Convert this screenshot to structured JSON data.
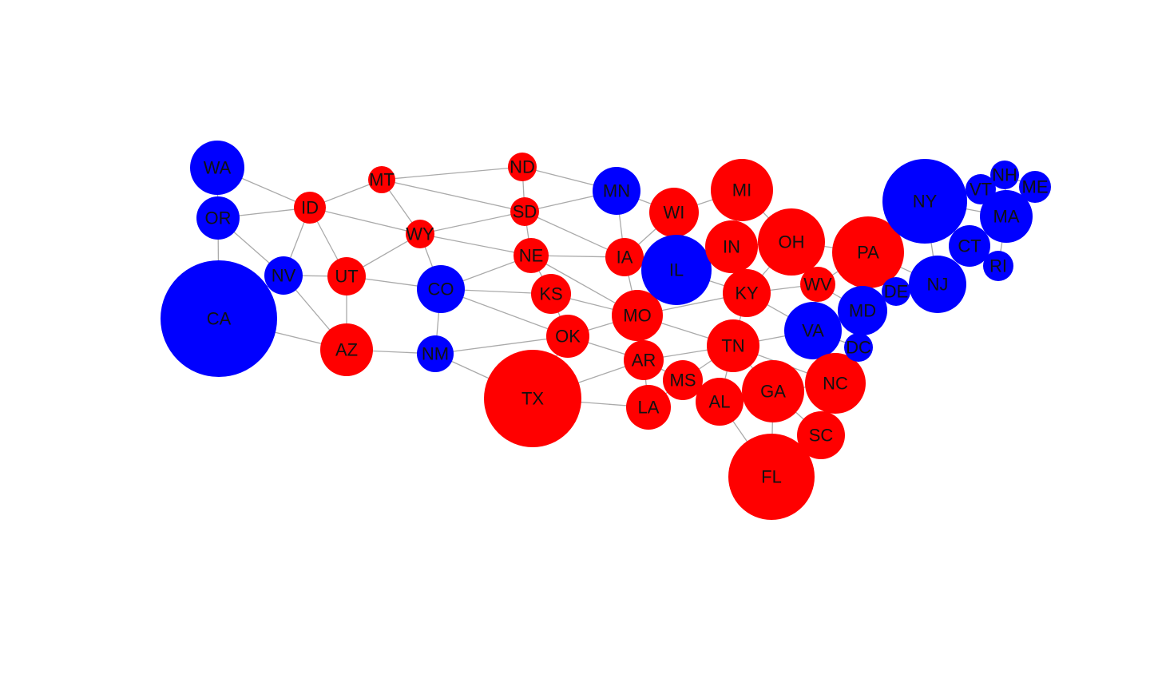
{
  "diagram": {
    "type": "network-graph",
    "party_colors": {
      "red": "#ff0000",
      "blue": "#0000ff"
    },
    "edge_color": "#aaaaaa",
    "nodes": [
      {
        "id": "WA",
        "party": "blue"
      },
      {
        "id": "OR",
        "party": "blue"
      },
      {
        "id": "CA",
        "party": "blue"
      },
      {
        "id": "NV",
        "party": "blue"
      },
      {
        "id": "ID",
        "party": "red"
      },
      {
        "id": "MT",
        "party": "red"
      },
      {
        "id": "UT",
        "party": "red"
      },
      {
        "id": "AZ",
        "party": "red"
      },
      {
        "id": "WY",
        "party": "red"
      },
      {
        "id": "CO",
        "party": "blue"
      },
      {
        "id": "NM",
        "party": "blue"
      },
      {
        "id": "ND",
        "party": "red"
      },
      {
        "id": "SD",
        "party": "red"
      },
      {
        "id": "NE",
        "party": "red"
      },
      {
        "id": "KS",
        "party": "red"
      },
      {
        "id": "OK",
        "party": "red"
      },
      {
        "id": "TX",
        "party": "red"
      },
      {
        "id": "MN",
        "party": "blue"
      },
      {
        "id": "IA",
        "party": "red"
      },
      {
        "id": "MO",
        "party": "red"
      },
      {
        "id": "AR",
        "party": "red"
      },
      {
        "id": "LA",
        "party": "red"
      },
      {
        "id": "WI",
        "party": "red"
      },
      {
        "id": "IL",
        "party": "blue"
      },
      {
        "id": "MS",
        "party": "red"
      },
      {
        "id": "MI",
        "party": "red"
      },
      {
        "id": "IN",
        "party": "red"
      },
      {
        "id": "KY",
        "party": "red"
      },
      {
        "id": "TN",
        "party": "red"
      },
      {
        "id": "AL",
        "party": "red"
      },
      {
        "id": "GA",
        "party": "red"
      },
      {
        "id": "FL",
        "party": "red"
      },
      {
        "id": "OH",
        "party": "red"
      },
      {
        "id": "WV",
        "party": "red"
      },
      {
        "id": "VA",
        "party": "blue"
      },
      {
        "id": "NC",
        "party": "red"
      },
      {
        "id": "SC",
        "party": "red"
      },
      {
        "id": "PA",
        "party": "red"
      },
      {
        "id": "MD",
        "party": "blue"
      },
      {
        "id": "DC",
        "party": "blue"
      },
      {
        "id": "DE",
        "party": "blue"
      },
      {
        "id": "NJ",
        "party": "blue"
      },
      {
        "id": "NY",
        "party": "blue"
      },
      {
        "id": "CT",
        "party": "blue"
      },
      {
        "id": "RI",
        "party": "blue"
      },
      {
        "id": "MA",
        "party": "blue"
      },
      {
        "id": "VT",
        "party": "blue"
      },
      {
        "id": "NH",
        "party": "blue"
      },
      {
        "id": "ME",
        "party": "blue"
      }
    ],
    "edges": [
      [
        "WA",
        "OR"
      ],
      [
        "WA",
        "ID"
      ],
      [
        "OR",
        "ID"
      ],
      [
        "OR",
        "NV"
      ],
      [
        "OR",
        "CA"
      ],
      [
        "CA",
        "NV"
      ],
      [
        "CA",
        "AZ"
      ],
      [
        "NV",
        "ID"
      ],
      [
        "NV",
        "UT"
      ],
      [
        "NV",
        "AZ"
      ],
      [
        "ID",
        "MT"
      ],
      [
        "ID",
        "WY"
      ],
      [
        "ID",
        "UT"
      ],
      [
        "UT",
        "AZ"
      ],
      [
        "UT",
        "WY"
      ],
      [
        "UT",
        "CO"
      ],
      [
        "AZ",
        "NM"
      ],
      [
        "MT",
        "WY"
      ],
      [
        "MT",
        "ND"
      ],
      [
        "MT",
        "SD"
      ],
      [
        "WY",
        "SD"
      ],
      [
        "WY",
        "NE"
      ],
      [
        "WY",
        "CO"
      ],
      [
        "CO",
        "NE"
      ],
      [
        "CO",
        "KS"
      ],
      [
        "CO",
        "OK"
      ],
      [
        "CO",
        "NM"
      ],
      [
        "NM",
        "OK"
      ],
      [
        "NM",
        "TX"
      ],
      [
        "ND",
        "SD"
      ],
      [
        "ND",
        "MN"
      ],
      [
        "SD",
        "MN"
      ],
      [
        "SD",
        "NE"
      ],
      [
        "SD",
        "IA"
      ],
      [
        "NE",
        "IA"
      ],
      [
        "NE",
        "MO"
      ],
      [
        "NE",
        "KS"
      ],
      [
        "KS",
        "MO"
      ],
      [
        "KS",
        "OK"
      ],
      [
        "OK",
        "MO"
      ],
      [
        "OK",
        "AR"
      ],
      [
        "OK",
        "TX"
      ],
      [
        "TX",
        "AR"
      ],
      [
        "TX",
        "LA"
      ],
      [
        "MN",
        "WI"
      ],
      [
        "MN",
        "IA"
      ],
      [
        "IA",
        "WI"
      ],
      [
        "IA",
        "IL"
      ],
      [
        "IA",
        "MO"
      ],
      [
        "MO",
        "IL"
      ],
      [
        "MO",
        "KY"
      ],
      [
        "MO",
        "TN"
      ],
      [
        "MO",
        "AR"
      ],
      [
        "AR",
        "TN"
      ],
      [
        "AR",
        "MS"
      ],
      [
        "AR",
        "LA"
      ],
      [
        "LA",
        "MS"
      ],
      [
        "WI",
        "IL"
      ],
      [
        "WI",
        "MI"
      ],
      [
        "IL",
        "IN"
      ],
      [
        "IL",
        "KY"
      ],
      [
        "MI",
        "IN"
      ],
      [
        "MI",
        "OH"
      ],
      [
        "IN",
        "OH"
      ],
      [
        "IN",
        "KY"
      ],
      [
        "KY",
        "OH"
      ],
      [
        "KY",
        "WV"
      ],
      [
        "KY",
        "VA"
      ],
      [
        "KY",
        "TN"
      ],
      [
        "TN",
        "VA"
      ],
      [
        "TN",
        "NC"
      ],
      [
        "TN",
        "GA"
      ],
      [
        "TN",
        "AL"
      ],
      [
        "TN",
        "MS"
      ],
      [
        "MS",
        "AL"
      ],
      [
        "AL",
        "GA"
      ],
      [
        "AL",
        "FL"
      ],
      [
        "GA",
        "FL"
      ],
      [
        "GA",
        "SC"
      ],
      [
        "GA",
        "NC"
      ],
      [
        "NC",
        "SC"
      ],
      [
        "NC",
        "VA"
      ],
      [
        "OH",
        "WV"
      ],
      [
        "OH",
        "PA"
      ],
      [
        "WV",
        "PA"
      ],
      [
        "WV",
        "VA"
      ],
      [
        "WV",
        "MD"
      ],
      [
        "VA",
        "MD"
      ],
      [
        "VA",
        "DC"
      ],
      [
        "MD",
        "DC"
      ],
      [
        "MD",
        "PA"
      ],
      [
        "MD",
        "DE"
      ],
      [
        "PA",
        "DE"
      ],
      [
        "PA",
        "NJ"
      ],
      [
        "PA",
        "NY"
      ],
      [
        "DE",
        "NJ"
      ],
      [
        "NJ",
        "NY"
      ],
      [
        "NY",
        "CT"
      ],
      [
        "NY",
        "MA"
      ],
      [
        "NY",
        "VT"
      ],
      [
        "CT",
        "MA"
      ],
      [
        "CT",
        "RI"
      ],
      [
        "MA",
        "RI"
      ],
      [
        "MA",
        "VT"
      ],
      [
        "MA",
        "NH"
      ],
      [
        "VT",
        "NH"
      ],
      [
        "NH",
        "ME"
      ]
    ]
  }
}
